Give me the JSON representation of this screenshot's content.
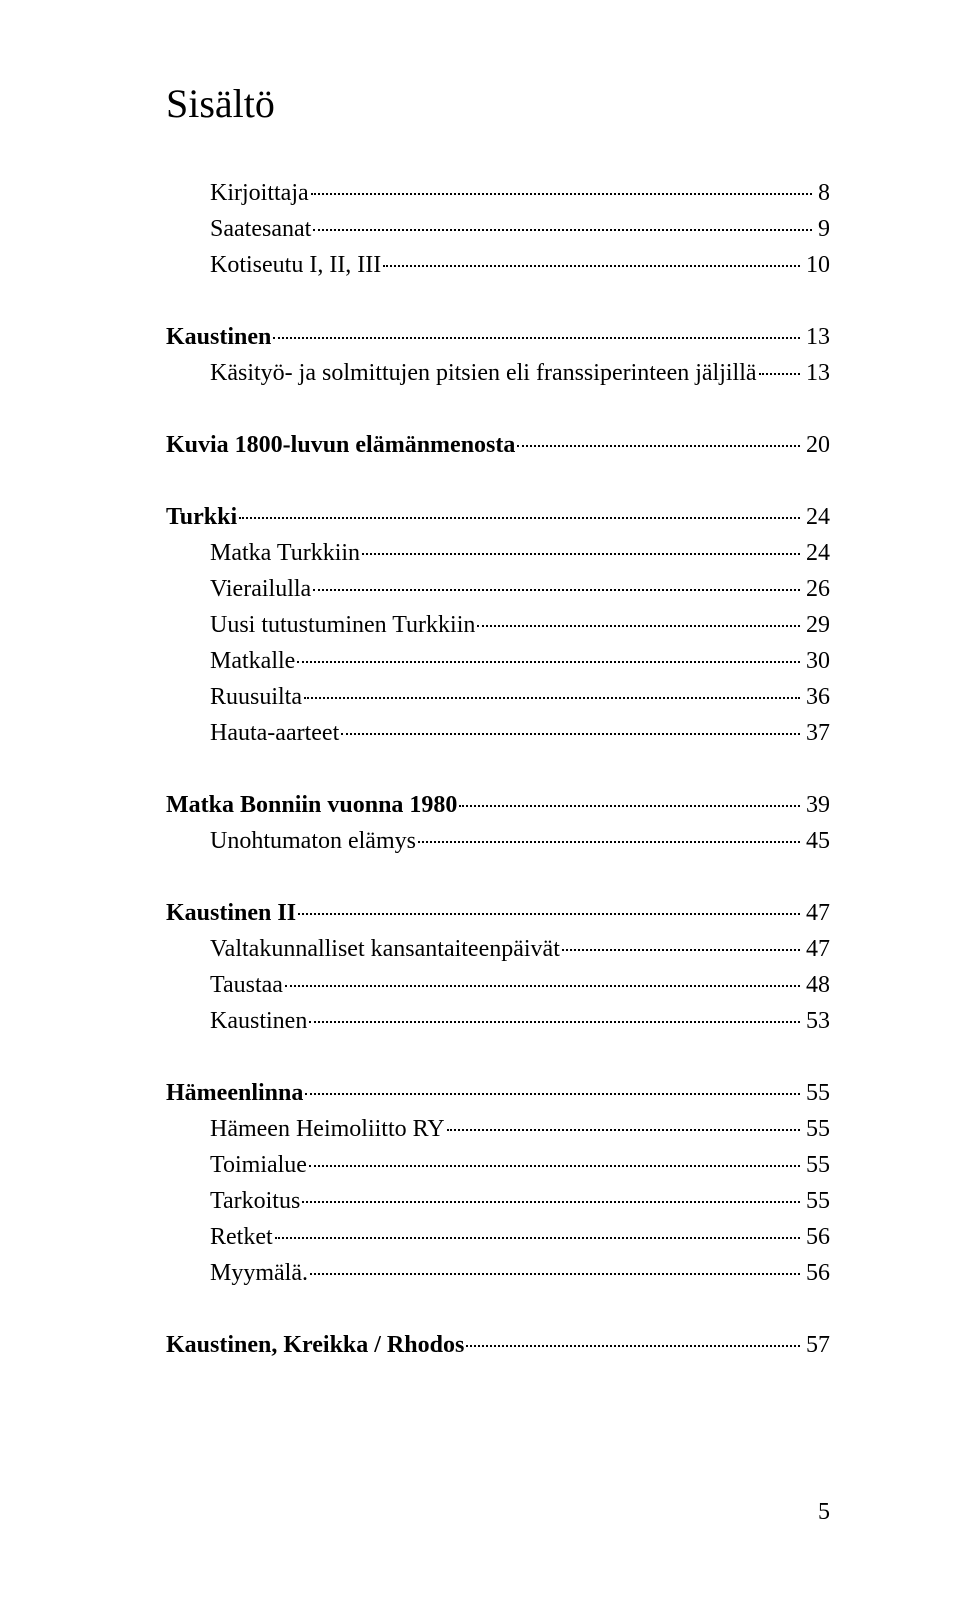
{
  "title": "Sisältö",
  "page_number": "5",
  "entries": [
    {
      "label": "Kirjoittaja",
      "page": "8",
      "indent": true,
      "bold": false,
      "gap": false
    },
    {
      "label": "Saatesanat",
      "page": "9",
      "indent": true,
      "bold": false,
      "gap": false
    },
    {
      "label": "Kotiseutu I, II, III",
      "page": "10",
      "indent": true,
      "bold": false,
      "gap": false
    },
    {
      "label": "Kaustinen",
      "page": "13",
      "indent": false,
      "bold": true,
      "gap": true
    },
    {
      "label": "Käsityö- ja solmittujen pitsien eli franssiperinteen jäljillä",
      "page": "13",
      "indent": true,
      "bold": false,
      "gap": false
    },
    {
      "label": "Kuvia 1800-luvun elämänmenosta",
      "page": "20",
      "indent": false,
      "bold": true,
      "gap": true
    },
    {
      "label": "Turkki",
      "page": "24",
      "indent": false,
      "bold": true,
      "gap": true
    },
    {
      "label": "Matka Turkkiin",
      "page": "24",
      "indent": true,
      "bold": false,
      "gap": false
    },
    {
      "label": "Vierailulla",
      "page": "26",
      "indent": true,
      "bold": false,
      "gap": false
    },
    {
      "label": "Uusi tutustuminen Turkkiin",
      "page": "29",
      "indent": true,
      "bold": false,
      "gap": false
    },
    {
      "label": "Matkalle",
      "page": "30",
      "indent": true,
      "bold": false,
      "gap": false
    },
    {
      "label": "Ruusuilta",
      "page": "36",
      "indent": true,
      "bold": false,
      "gap": false
    },
    {
      "label": "Hauta-aarteet",
      "page": "37",
      "indent": true,
      "bold": false,
      "gap": false
    },
    {
      "label": "Matka Bonniin vuonna 1980",
      "page": "39",
      "indent": false,
      "bold": true,
      "gap": true
    },
    {
      "label": "Unohtumaton elämys",
      "page": "45",
      "indent": true,
      "bold": false,
      "gap": false
    },
    {
      "label": "Kaustinen II",
      "page": "47",
      "indent": false,
      "bold": true,
      "gap": true
    },
    {
      "label": "Valtakunnalliset kansantaiteenpäivät",
      "page": "47",
      "indent": true,
      "bold": false,
      "gap": false
    },
    {
      "label": "Taustaa",
      "page": "48",
      "indent": true,
      "bold": false,
      "gap": false
    },
    {
      "label": "Kaustinen",
      "page": "53",
      "indent": true,
      "bold": false,
      "gap": false
    },
    {
      "label": "Hämeenlinna",
      "page": "55",
      "indent": false,
      "bold": true,
      "gap": true
    },
    {
      "label": "Hämeen Heimoliitto RY",
      "page": "55",
      "indent": true,
      "bold": false,
      "gap": false
    },
    {
      "label": "Toimialue",
      "page": "55",
      "indent": true,
      "bold": false,
      "gap": false
    },
    {
      "label": "Tarkoitus",
      "page": "55",
      "indent": true,
      "bold": false,
      "gap": false
    },
    {
      "label": "Retket",
      "page": "56",
      "indent": true,
      "bold": false,
      "gap": false
    },
    {
      "label": "Myymälä.",
      "page": "56",
      "indent": true,
      "bold": false,
      "gap": false
    },
    {
      "label": "Kaustinen, Kreikka / Rhodos",
      "page": "57",
      "indent": false,
      "bold": true,
      "gap": true
    }
  ]
}
